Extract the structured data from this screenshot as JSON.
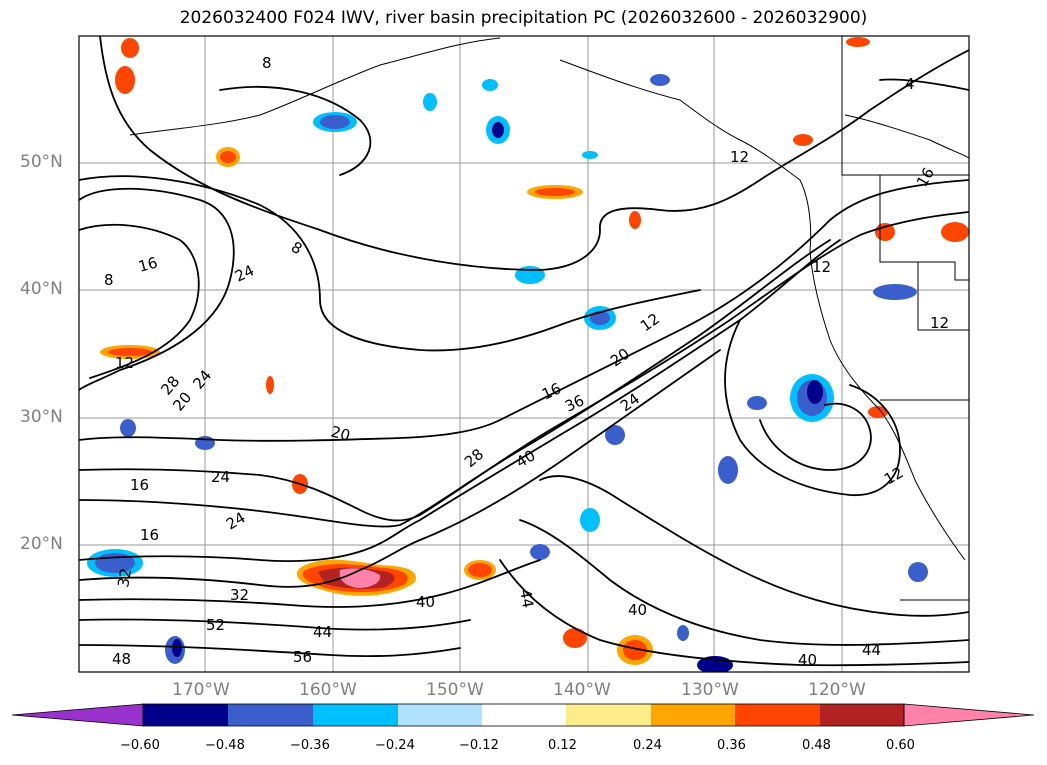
{
  "title": "2026032400 F024 IWV, river basin precipitation PC (2026032600 - 2026032900)",
  "lat_labels": [
    "50°N",
    "40°N",
    "30°N",
    "20°N"
  ],
  "lon_labels": [
    "170°W",
    "160°W",
    "150°W",
    "140°W",
    "130°W",
    "120°W"
  ],
  "colorbar": {
    "ticks": [
      "−0.60",
      "−0.48",
      "−0.36",
      "−0.24",
      "−0.12",
      "0.12",
      "0.24",
      "0.36",
      "0.48",
      "0.60"
    ],
    "colors": [
      "#9932CC",
      "#00008B",
      "#3A5FCD",
      "#00BFFF",
      "#B0E2FF",
      "#FFFFFF",
      "#FFEC8B",
      "#FFA500",
      "#FF4500",
      "#B22222",
      "#FF82AB"
    ]
  },
  "contour_labels": [
    "4",
    "8",
    "12",
    "16",
    "20",
    "24",
    "28",
    "32",
    "36",
    "40",
    "44",
    "48",
    "52",
    "56"
  ]
}
